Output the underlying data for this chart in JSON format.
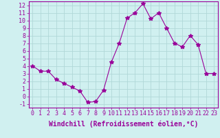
{
  "x": [
    0,
    1,
    2,
    3,
    4,
    5,
    6,
    7,
    8,
    9,
    10,
    11,
    12,
    13,
    14,
    15,
    16,
    17,
    18,
    19,
    20,
    21,
    22,
    23
  ],
  "y": [
    4.0,
    3.3,
    3.3,
    2.2,
    1.7,
    1.2,
    0.7,
    -0.8,
    -0.7,
    0.8,
    4.5,
    7.0,
    10.3,
    11.0,
    12.2,
    10.2,
    11.0,
    9.0,
    7.0,
    6.5,
    8.0,
    6.8,
    3.0,
    3.0
  ],
  "line_color": "#990099",
  "marker": "*",
  "marker_size": 4,
  "bg_color": "#d0f0f0",
  "grid_color": "#b0d8d8",
  "xlabel": "Windchill (Refroidissement éolien,°C)",
  "xlabel_fontsize": 7,
  "tick_fontsize": 6,
  "xlim": [
    -0.5,
    23.5
  ],
  "ylim": [
    -1.5,
    12.5
  ],
  "yticks": [
    -1,
    0,
    1,
    2,
    3,
    4,
    5,
    6,
    7,
    8,
    9,
    10,
    11,
    12
  ],
  "xticks": [
    0,
    1,
    2,
    3,
    4,
    5,
    6,
    7,
    8,
    9,
    10,
    11,
    12,
    13,
    14,
    15,
    16,
    17,
    18,
    19,
    20,
    21,
    22,
    23
  ]
}
